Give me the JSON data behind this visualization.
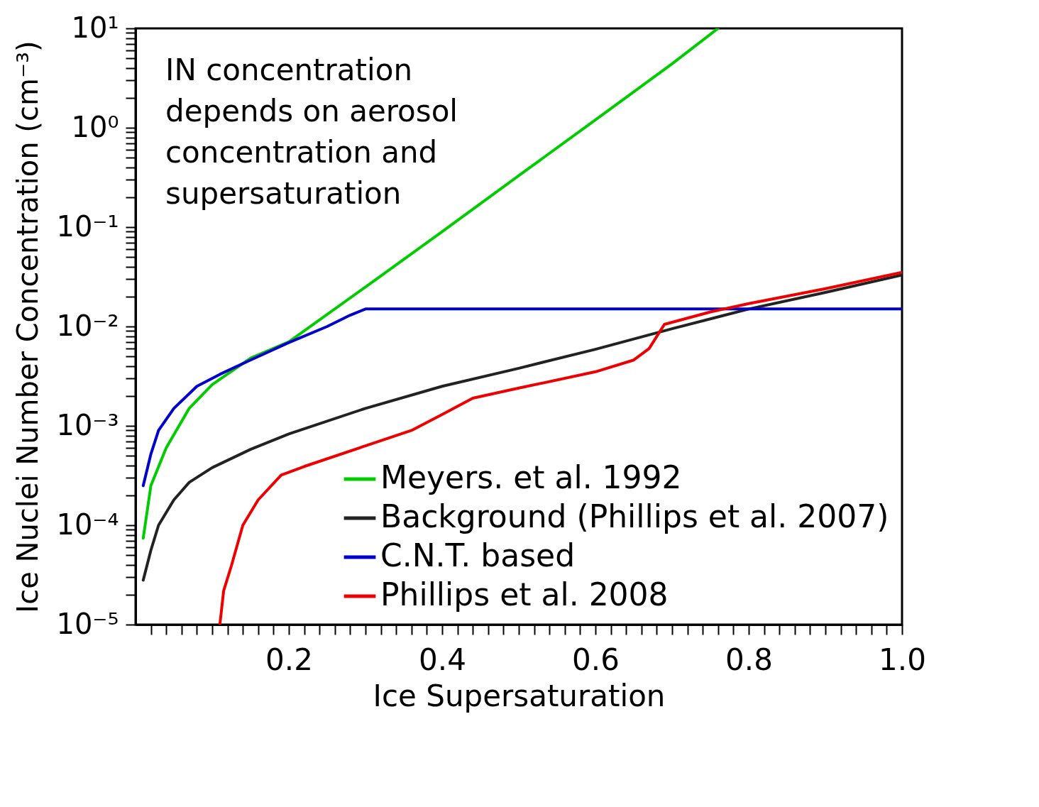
{
  "chart_data": {
    "type": "line",
    "xlabel": "Ice Supersaturation",
    "ylabel": "Ice Nuclei Number Concentration (cm⁻³)",
    "annotations": [
      "IN concentration\ndepends on aerosol\nconcentration and\nsupersaturation"
    ],
    "log": "y",
    "grid": false,
    "legend": "bottom right",
    "line_style": "solid",
    "marker": "none",
    "xlim": [
      0,
      1.0
    ],
    "ylim": [
      1e-05,
      10
    ],
    "xticks": [
      {
        "value": 0.02,
        "label": null
      },
      {
        "value": 0.04,
        "label": null
      },
      {
        "value": 0.06,
        "label": null
      },
      {
        "value": 0.08,
        "label": null
      },
      {
        "value": 0.1,
        "label": null
      },
      {
        "value": 0.12,
        "label": null
      },
      {
        "value": 0.14,
        "label": null
      },
      {
        "value": 0.16,
        "label": null
      },
      {
        "value": 0.18,
        "label": null
      },
      0.2,
      {
        "value": 0.22,
        "label": null
      },
      {
        "value": 0.24,
        "label": null
      },
      {
        "value": 0.26,
        "label": null
      },
      {
        "value": 0.28,
        "label": null
      },
      {
        "value": 0.3,
        "label": null
      },
      {
        "value": 0.32,
        "label": null
      },
      {
        "value": 0.34,
        "label": null
      },
      {
        "value": 0.36,
        "label": null
      },
      {
        "value": 0.38,
        "label": null
      },
      0.4,
      {
        "value": 0.42,
        "label": null
      },
      {
        "value": 0.44,
        "label": null
      },
      {
        "value": 0.46,
        "label": null
      },
      {
        "value": 0.48,
        "label": null
      },
      {
        "value": 0.5,
        "label": null
      },
      {
        "value": 0.52,
        "label": null
      },
      {
        "value": 0.54,
        "label": null
      },
      {
        "value": 0.56,
        "label": null
      },
      {
        "value": 0.58,
        "label": null
      },
      0.6,
      {
        "value": 0.62,
        "label": null
      },
      {
        "value": 0.64,
        "label": null
      },
      {
        "value": 0.66,
        "label": null
      },
      {
        "value": 0.68,
        "label": null
      },
      {
        "value": 0.7,
        "label": null
      },
      {
        "value": 0.72,
        "label": null
      },
      {
        "value": 0.74,
        "label": null
      },
      {
        "value": 0.76,
        "label": null
      },
      {
        "value": 0.78,
        "label": null
      },
      0.8,
      {
        "value": 0.82,
        "label": null
      },
      {
        "value": 0.84,
        "label": null
      },
      {
        "value": 0.86,
        "label": null
      },
      {
        "value": 0.88,
        "label": null
      },
      {
        "value": 0.9,
        "label": null
      },
      {
        "value": 0.92,
        "label": null
      },
      {
        "value": 0.94,
        "label": null
      },
      {
        "value": 0.96,
        "label": null
      },
      {
        "value": 0.98,
        "label": null
      },
      {
        "value": 1.0,
        "label": "1.0"
      }
    ],
    "yticks": [
      {
        "value": 1e-05,
        "label": "10⁻⁵"
      },
      {
        "value": 2e-05,
        "label": null
      },
      {
        "value": 3e-05,
        "label": null
      },
      {
        "value": 4e-05,
        "label": null
      },
      {
        "value": 5e-05,
        "label": null
      },
      {
        "value": 6e-05,
        "label": null
      },
      {
        "value": 7e-05,
        "label": null
      },
      {
        "value": 8e-05,
        "label": null
      },
      {
        "value": 9e-05,
        "label": null
      },
      {
        "value": 0.0001,
        "label": "10⁻⁴"
      },
      {
        "value": 0.0002,
        "label": null
      },
      {
        "value": 0.0003,
        "label": null
      },
      {
        "value": 0.0004,
        "label": null
      },
      {
        "value": 0.0005,
        "label": null
      },
      {
        "value": 0.0006,
        "label": null
      },
      {
        "value": 0.0007,
        "label": null
      },
      {
        "value": 0.0008,
        "label": null
      },
      {
        "value": 0.0009,
        "label": null
      },
      {
        "value": 0.001,
        "label": "10⁻³"
      },
      {
        "value": 0.002,
        "label": null
      },
      {
        "value": 0.003,
        "label": null
      },
      {
        "value": 0.004,
        "label": null
      },
      {
        "value": 0.005,
        "label": null
      },
      {
        "value": 0.006,
        "label": null
      },
      {
        "value": 0.007,
        "label": null
      },
      {
        "value": 0.008,
        "label": null
      },
      {
        "value": 0.009,
        "label": null
      },
      {
        "value": 0.01,
        "label": "10⁻²"
      },
      {
        "value": 0.02,
        "label": null
      },
      {
        "value": 0.03,
        "label": null
      },
      {
        "value": 0.04,
        "label": null
      },
      {
        "value": 0.05,
        "label": null
      },
      {
        "value": 0.06,
        "label": null
      },
      {
        "value": 0.07,
        "label": null
      },
      {
        "value": 0.08,
        "label": null
      },
      {
        "value": 0.09,
        "label": null
      },
      {
        "value": 0.1,
        "label": "10⁻¹"
      },
      {
        "value": 0.2,
        "label": null
      },
      {
        "value": 0.3,
        "label": null
      },
      {
        "value": 0.4,
        "label": null
      },
      {
        "value": 0.5,
        "label": null
      },
      {
        "value": 0.6,
        "label": null
      },
      {
        "value": 0.7,
        "label": null
      },
      {
        "value": 0.8,
        "label": null
      },
      {
        "value": 0.9,
        "label": null
      },
      {
        "value": 1,
        "label": "10⁰"
      },
      {
        "value": 2,
        "label": null
      },
      {
        "value": 3,
        "label": null
      },
      {
        "value": 4,
        "label": null
      },
      {
        "value": 5,
        "label": null
      },
      {
        "value": 6,
        "label": null
      },
      {
        "value": 7,
        "label": null
      },
      {
        "value": 8,
        "label": null
      },
      {
        "value": 9,
        "label": null
      },
      {
        "value": 10,
        "label": "10¹"
      }
    ],
    "series": [
      {
        "name": "Meyers. et al. 1992",
        "color": "#00cc00",
        "x": [
          0.01,
          0.02,
          0.04,
          0.07,
          0.1,
          0.15,
          0.2,
          0.3,
          0.4,
          0.5,
          0.6,
          0.7,
          0.76
        ],
        "values": [
          7.4e-05,
          0.00025,
          0.0006,
          0.0015,
          0.0026,
          0.0048,
          0.007,
          0.025,
          0.09,
          0.33,
          1.2,
          4.4,
          10
        ]
      },
      {
        "name": "Background (Phillips et al. 2007)",
        "color": "#222222",
        "x": [
          0.01,
          0.02,
          0.03,
          0.05,
          0.07,
          0.1,
          0.15,
          0.2,
          0.3,
          0.4,
          0.5,
          0.6,
          0.7,
          0.8,
          0.9,
          1.0
        ],
        "values": [
          2.8e-05,
          5.6e-05,
          0.0001,
          0.00018,
          0.00027,
          0.00038,
          0.00058,
          0.00083,
          0.0015,
          0.0025,
          0.0038,
          0.0059,
          0.0095,
          0.015,
          0.022,
          0.033
        ]
      },
      {
        "name": "C.N.T. based",
        "color": "#0000cc",
        "x": [
          0.01,
          0.02,
          0.03,
          0.05,
          0.08,
          0.11,
          0.15,
          0.2,
          0.25,
          0.28,
          0.3,
          1.0
        ],
        "values": [
          0.00025,
          0.00052,
          0.0009,
          0.0015,
          0.0025,
          0.0033,
          0.0046,
          0.0069,
          0.01,
          0.013,
          0.015,
          0.015
        ]
      },
      {
        "name": "Phillips et al. 2008",
        "color": "#ee0000",
        "x": [
          0.11,
          0.115,
          0.125,
          0.14,
          0.16,
          0.19,
          0.22,
          0.3,
          0.36,
          0.4,
          0.44,
          0.5,
          0.6,
          0.65,
          0.67,
          0.69,
          0.75,
          0.8,
          0.9,
          1.0
        ],
        "values": [
          1e-05,
          2.2e-05,
          3.9e-05,
          0.0001,
          0.00018,
          0.00032,
          0.00039,
          0.00063,
          0.0009,
          0.0013,
          0.0019,
          0.0024,
          0.0035,
          0.0046,
          0.006,
          0.0105,
          0.014,
          0.017,
          0.024,
          0.035
        ]
      }
    ]
  }
}
